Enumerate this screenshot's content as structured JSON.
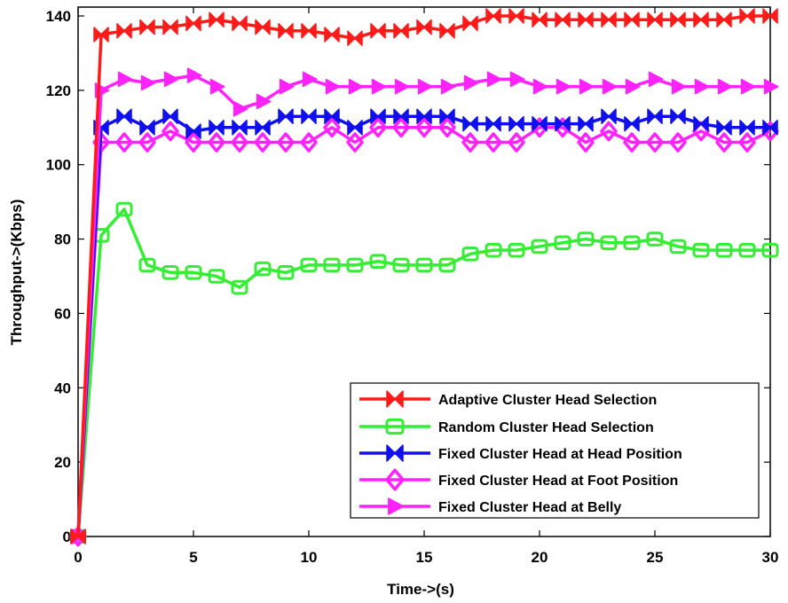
{
  "chart_data": {
    "type": "line",
    "title": "",
    "xlabel": "Time->(s)",
    "ylabel": "Throughput->(Kbps)",
    "xlim": [
      0,
      30
    ],
    "ylim": [
      0,
      140
    ],
    "xticks": [
      0,
      5,
      10,
      15,
      20,
      25,
      30
    ],
    "yticks": [
      0,
      20,
      40,
      60,
      80,
      100,
      120,
      140
    ],
    "grid": false,
    "legend_position": "bottom-right",
    "x": [
      0,
      1,
      2,
      3,
      4,
      5,
      6,
      7,
      8,
      9,
      10,
      11,
      12,
      13,
      14,
      15,
      16,
      17,
      18,
      19,
      20,
      21,
      22,
      23,
      24,
      25,
      26,
      27,
      28,
      29,
      30
    ],
    "series": [
      {
        "name": "Adaptive Cluster Head Selection",
        "color": "#ff1a1a",
        "marker": "bowtie",
        "values": [
          0,
          135,
          136,
          137,
          137,
          138,
          139,
          138,
          137,
          136,
          136,
          135,
          134,
          136,
          136,
          137,
          136,
          138,
          140,
          140,
          139,
          139,
          139,
          139,
          139,
          139,
          139,
          139,
          139,
          140,
          140
        ]
      },
      {
        "name": "Random Cluster Head Selection",
        "color": "#33ee33",
        "marker": "square",
        "values": [
          0,
          81,
          88,
          73,
          71,
          71,
          70,
          67,
          72,
          71,
          73,
          73,
          73,
          74,
          73,
          73,
          73,
          76,
          77,
          77,
          78,
          79,
          80,
          79,
          79,
          80,
          78,
          77,
          77,
          77,
          77
        ]
      },
      {
        "name": "Fixed Cluster Head at Head Position",
        "color": "#1010ee",
        "marker": "bowtie",
        "values": [
          0,
          110,
          113,
          110,
          113,
          109,
          110,
          110,
          110,
          113,
          113,
          113,
          110,
          113,
          113,
          113,
          113,
          111,
          111,
          111,
          111,
          111,
          111,
          113,
          111,
          113,
          113,
          111,
          110,
          110,
          110
        ]
      },
      {
        "name": "Fixed Cluster Head at Foot Position",
        "color": "#ff22ff",
        "marker": "diamond",
        "values": [
          0,
          106,
          106,
          106,
          109,
          106,
          106,
          106,
          106,
          106,
          106,
          110,
          106,
          110,
          110,
          110,
          110,
          106,
          106,
          106,
          110,
          110,
          106,
          109,
          106,
          106,
          106,
          109,
          106,
          106,
          109
        ]
      },
      {
        "name": "Fixed Cluster Head at Belly",
        "color": "#ff22ff",
        "marker": "triangle",
        "values": [
          0,
          120,
          123,
          122,
          123,
          124,
          121,
          115,
          117,
          121,
          123,
          121,
          121,
          121,
          121,
          121,
          121,
          122,
          123,
          123,
          121,
          121,
          121,
          121,
          121,
          123,
          121,
          121,
          121,
          121,
          121
        ]
      }
    ]
  }
}
